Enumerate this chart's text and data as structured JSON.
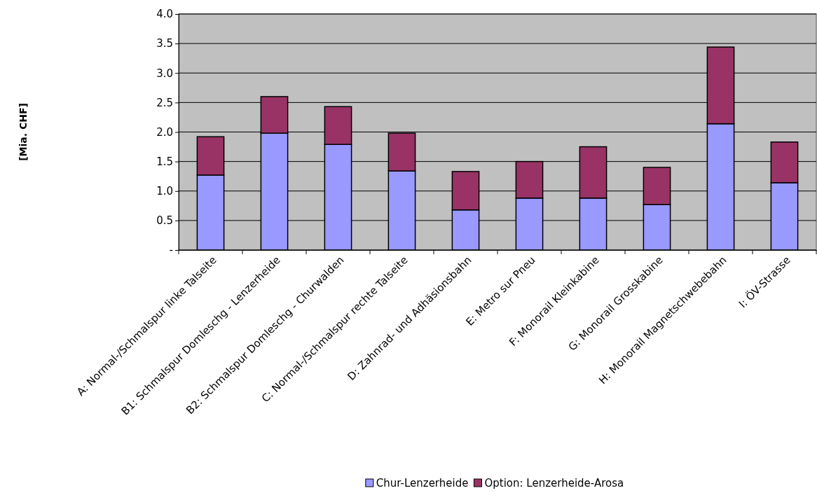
{
  "chart_data": {
    "type": "bar",
    "stacked": true,
    "ylabel": "[Mia. CHF]",
    "categories": [
      "A: Normal-/Schmalspur linke Talseite",
      "B1: Schmalspur Domleschg - Lenzerheide",
      "B2: Schmalspur Domleschg - Churwalden",
      "C: Normal-/Schmalspur rechte Talseite",
      "D: Zahnrad- und Adhäsionsbahn",
      "E: Metro sur Pneu",
      "F: Monorail Kleinkabine",
      "G: Monorail Grosskabine",
      "H: Monorail Magnetschwebebahn",
      "I: ÖV-Strasse"
    ],
    "series": [
      {
        "name": "Chur-Lenzerheide",
        "color": "#9999ff",
        "values": [
          1.27,
          1.98,
          1.79,
          1.34,
          0.68,
          0.88,
          0.88,
          0.77,
          2.14,
          1.14
        ]
      },
      {
        "name": "Option: Lenzerheide-Arosa",
        "color": "#993366",
        "values": [
          0.65,
          0.62,
          0.64,
          0.64,
          0.65,
          0.62,
          0.87,
          0.63,
          1.3,
          0.69
        ]
      }
    ],
    "ylim": [
      0,
      4
    ],
    "yticks": [
      {
        "value": 0,
        "label": "-"
      },
      0.5,
      {
        "value": 1,
        "label": "1.0"
      },
      1.5,
      {
        "value": 2,
        "label": "2.0"
      },
      2.5,
      {
        "value": 3,
        "label": "3.0"
      },
      3.5,
      {
        "value": 4,
        "label": "4.0"
      }
    ],
    "grid": "y",
    "legend": "bottom"
  }
}
